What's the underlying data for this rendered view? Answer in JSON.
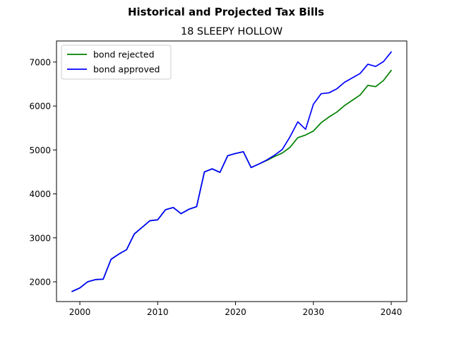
{
  "chart_data": {
    "type": "line",
    "suptitle": "Historical and Projected Tax Bills",
    "title": "18 SLEEPY HOLLOW",
    "xlabel": "",
    "ylabel": "",
    "xlim": [
      1997,
      2042
    ],
    "ylim": [
      1550,
      7480
    ],
    "xticks": [
      2000,
      2010,
      2020,
      2030,
      2040
    ],
    "yticks": [
      2000,
      3000,
      4000,
      5000,
      6000,
      7000
    ],
    "grid": false,
    "legend_position": "top-left",
    "series": [
      {
        "name": "bond rejected",
        "color": "#008000",
        "x": [
          1999,
          2000,
          2001,
          2002,
          2003,
          2004,
          2005,
          2006,
          2007,
          2008,
          2009,
          2010,
          2011,
          2012,
          2013,
          2014,
          2015,
          2016,
          2017,
          2018,
          2019,
          2020,
          2021,
          2022,
          2023,
          2024,
          2025,
          2026,
          2027,
          2028,
          2029,
          2030,
          2031,
          2032,
          2033,
          2034,
          2035,
          2036,
          2037,
          2038,
          2039,
          2040
        ],
        "values": [
          1780,
          1860,
          2000,
          2050,
          2060,
          2510,
          2630,
          2730,
          3090,
          3240,
          3390,
          3410,
          3640,
          3690,
          3550,
          3650,
          3710,
          4500,
          4570,
          4490,
          4870,
          4920,
          4960,
          4600,
          4680,
          4760,
          4850,
          4930,
          5060,
          5280,
          5340,
          5430,
          5620,
          5750,
          5860,
          6010,
          6130,
          6250,
          6470,
          6440,
          6580,
          6810
        ]
      },
      {
        "name": "bond approved",
        "color": "#0000ff",
        "x": [
          1999,
          2000,
          2001,
          2002,
          2003,
          2004,
          2005,
          2006,
          2007,
          2008,
          2009,
          2010,
          2011,
          2012,
          2013,
          2014,
          2015,
          2016,
          2017,
          2018,
          2019,
          2020,
          2021,
          2022,
          2023,
          2024,
          2025,
          2026,
          2027,
          2028,
          2029,
          2030,
          2031,
          2032,
          2033,
          2034,
          2035,
          2036,
          2037,
          2038,
          2039,
          2040
        ],
        "values": [
          1780,
          1860,
          2000,
          2050,
          2060,
          2510,
          2630,
          2730,
          3090,
          3240,
          3390,
          3410,
          3640,
          3690,
          3550,
          3650,
          3710,
          4500,
          4570,
          4490,
          4870,
          4920,
          4960,
          4600,
          4680,
          4770,
          4880,
          5010,
          5300,
          5640,
          5470,
          6040,
          6280,
          6300,
          6390,
          6540,
          6640,
          6740,
          6950,
          6900,
          7010,
          7230
        ]
      }
    ]
  }
}
